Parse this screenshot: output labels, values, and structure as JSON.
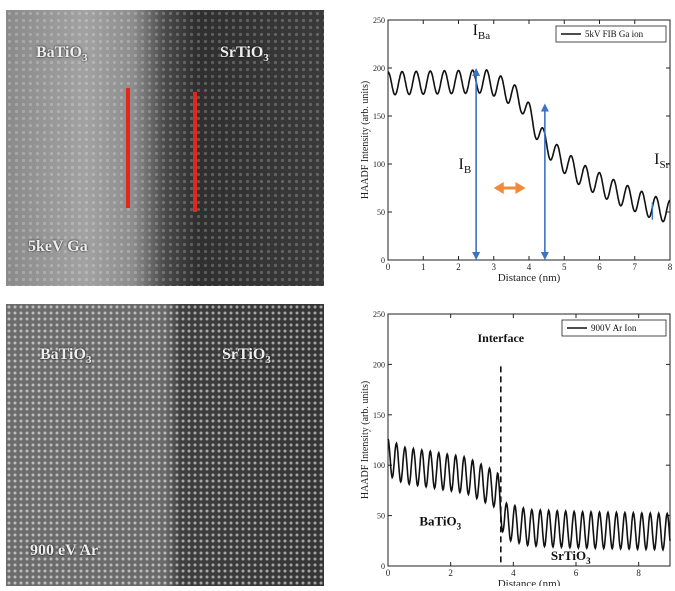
{
  "panels": {
    "top_image": {
      "label_left": "BaTiO",
      "label_left_sub": "3",
      "label_right": "SrTiO",
      "label_right_sub": "3",
      "label_bottom": "5keV Ga",
      "marker_color": "#e4261b"
    },
    "bottom_image": {
      "label_left": "BaTiO",
      "label_left_sub": "3",
      "label_right": "SrTiO",
      "label_right_sub": "3",
      "label_bottom": "900 eV Ar"
    }
  },
  "chart_data": [
    {
      "type": "line",
      "xlabel": "Distance (nm)",
      "ylabel": "HAADF Intensity (arb. units)",
      "xlim": [
        0,
        8
      ],
      "ylim": [
        0,
        250
      ],
      "xticks": [
        "0",
        "1",
        "2",
        "3",
        "4",
        "5",
        "6",
        "7",
        "8"
      ],
      "yticks": [
        "0",
        "50",
        "100",
        "150",
        "200",
        "250"
      ],
      "grid": false,
      "legend_position": "top-right",
      "legend": "5kV FIB Ga ion",
      "series": [
        {
          "name": "5kV FIB Ga ion",
          "color": "#111111",
          "period": 0.4,
          "oscillation_amplitude": 12,
          "envelope_x": [
            0,
            2.8,
            3.3,
            3.8,
            4.4,
            4.8,
            5.5,
            6.5,
            7.5,
            8
          ],
          "envelope_y": [
            184,
            186,
            178,
            165,
            125,
            108,
            88,
            70,
            55,
            50
          ]
        }
      ],
      "annotations": {
        "i_ba_label": "I",
        "i_ba_sub": "Ba",
        "i_b_label": "I",
        "i_b_sub": "B",
        "i_sr_label": "I",
        "i_sr_sub": "Sr",
        "arrow_color": "#3b73c4",
        "double_arrow_color": "#f08a3a",
        "vertical_arrows_x": [
          2.5,
          4.45
        ],
        "double_arrow_x": [
          3.0,
          3.9
        ],
        "double_arrow_y": 75
      }
    },
    {
      "type": "line",
      "xlabel": "Distance (nm)",
      "ylabel": "HAADF Intensity (arb. units)",
      "xlim": [
        0,
        9
      ],
      "ylim": [
        0,
        250
      ],
      "xticks": [
        "0",
        "2",
        "4",
        "6",
        "8"
      ],
      "yticks": [
        "0",
        "50",
        "100",
        "150",
        "200",
        "250"
      ],
      "grid": false,
      "legend_position": "top-right",
      "legend": "900V Ar Ion",
      "series": [
        {
          "name": "900V Ar Ion",
          "color": "#111111",
          "period": 0.27,
          "oscillation_amplitude": 18,
          "envelope_x": [
            0,
            0.5,
            1.5,
            2.5,
            3.5,
            3.7,
            4.5,
            6,
            7.5,
            9
          ],
          "envelope_y": [
            108,
            100,
            95,
            90,
            75,
            45,
            38,
            36,
            35,
            34
          ]
        }
      ],
      "annotations": {
        "interface_label": "Interface",
        "interface_x": 3.6,
        "bati_label": "BaTiO",
        "bati_sub": "3",
        "srti_label": "SrTiO",
        "srti_sub": "3"
      }
    }
  ]
}
